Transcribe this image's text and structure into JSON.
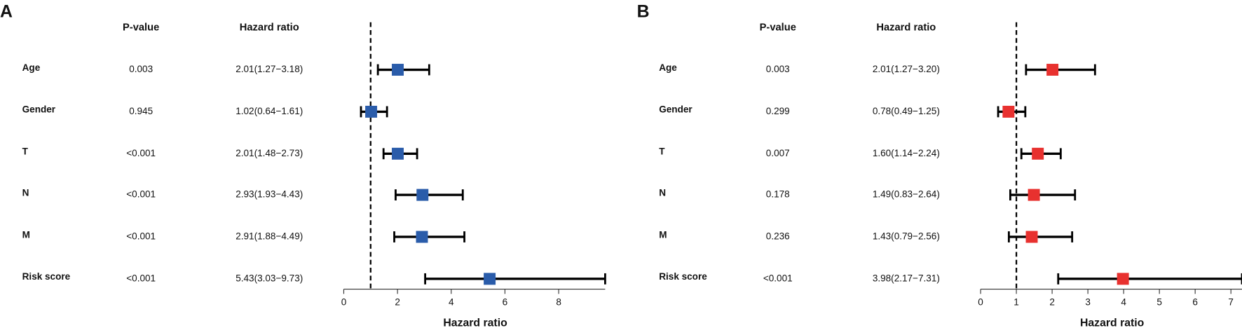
{
  "chart_data": [
    {
      "type": "forest",
      "panel_label": "A",
      "p_header": "P-value",
      "hr_header": "Hazard ratio",
      "categories": [
        "Age",
        "Gender",
        "T",
        "N",
        "M",
        "Risk score"
      ],
      "p_values": [
        "0.003",
        "0.945",
        "<0.001",
        "<0.001",
        "<0.001",
        "<0.001"
      ],
      "hr_labels": [
        "2.01(1.27−3.18)",
        "1.02(0.64−1.61)",
        "2.01(1.48−2.73)",
        "2.93(1.93−4.43)",
        "2.91(1.88−4.49)",
        "5.43(3.03−9.73)"
      ],
      "values": [
        2.01,
        1.02,
        2.01,
        2.93,
        2.91,
        5.43
      ],
      "lower": [
        1.27,
        0.64,
        1.48,
        1.93,
        1.88,
        3.03
      ],
      "upper": [
        3.18,
        1.61,
        2.73,
        4.43,
        4.49,
        9.73
      ],
      "color": "#2a5caa",
      "ref_line": 1,
      "xlim": [
        0,
        9.73
      ],
      "xticks": [
        0,
        2,
        4,
        6,
        8
      ],
      "xlabel": "Hazard ratio"
    },
    {
      "type": "forest",
      "panel_label": "B",
      "p_header": "P-value",
      "hr_header": "Hazard ratio",
      "categories": [
        "Age",
        "Gender",
        "T",
        "N",
        "M",
        "Risk score"
      ],
      "p_values": [
        "0.003",
        "0.299",
        "0.007",
        "0.178",
        "0.236",
        "<0.001"
      ],
      "hr_labels": [
        "2.01(1.27−3.20)",
        "0.78(0.49−1.25)",
        "1.60(1.14−2.24)",
        "1.49(0.83−2.64)",
        "1.43(0.79−2.56)",
        "3.98(2.17−7.31)"
      ],
      "values": [
        2.01,
        0.78,
        1.6,
        1.49,
        1.43,
        3.98
      ],
      "lower": [
        1.27,
        0.49,
        1.14,
        0.83,
        0.79,
        2.17
      ],
      "upper": [
        3.2,
        1.25,
        2.24,
        2.64,
        2.56,
        7.31
      ],
      "color": "#e8312f",
      "ref_line": 1,
      "xlim": [
        0,
        7.31
      ],
      "xticks": [
        0,
        1,
        2,
        3,
        4,
        5,
        6,
        7
      ],
      "xlabel": "Hazard ratio"
    }
  ]
}
